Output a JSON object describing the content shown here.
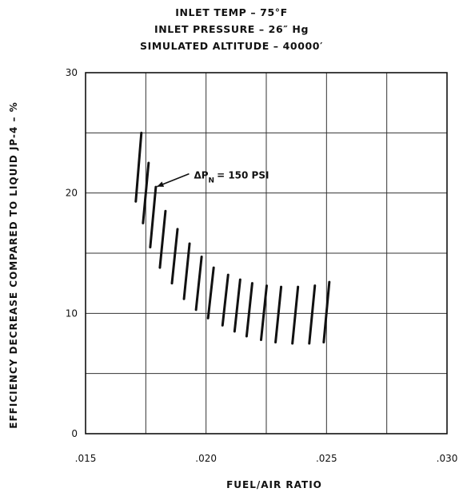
{
  "title_lines": [
    "INLET TEMP – 75°F",
    "INLET PRESSURE – 26″ Hg",
    "SIMULATED ALTITUDE – 40000′"
  ],
  "chart_data": {
    "type": "area",
    "title": "INLET TEMP – 75°F / INLET PRESSURE – 26″ Hg / SIMULATED ALTITUDE – 40000′",
    "xlabel": "FUEL/AIR RATIO",
    "ylabel": "EFFICIENCY DECREASE COMPARED TO LIQUID JP-4 – %",
    "xlim": [
      0.015,
      0.03
    ],
    "ylim": [
      0,
      30
    ],
    "x_ticks": [
      ".015",
      ".020",
      ".025",
      ".030"
    ],
    "y_ticks": [
      "0",
      "10",
      "20",
      "30"
    ],
    "grid": true,
    "series": [
      {
        "style": "hatched band",
        "x": [
          0.0172,
          0.0175,
          0.0178,
          0.0182,
          0.0187,
          0.0192,
          0.0197,
          0.0202,
          0.0208,
          0.0213,
          0.0218,
          0.0224,
          0.023,
          0.0237,
          0.0244,
          0.025
        ],
        "upper": [
          25.0,
          22.5,
          20.5,
          18.5,
          17.0,
          15.8,
          14.7,
          13.8,
          13.2,
          12.8,
          12.5,
          12.3,
          12.2,
          12.2,
          12.3,
          12.6
        ],
        "lower": [
          19.3,
          17.5,
          15.5,
          13.8,
          12.5,
          11.2,
          10.3,
          9.6,
          9.0,
          8.5,
          8.1,
          7.8,
          7.6,
          7.5,
          7.5,
          7.6
        ]
      }
    ],
    "annotations": [
      {
        "text": "ΔP",
        "subscript": "N",
        "suffix": "= 150 PSI",
        "x": 0.0185,
        "y": 21.0,
        "arrow_to_x": 0.0178,
        "arrow_to_y": 20.6
      }
    ]
  }
}
